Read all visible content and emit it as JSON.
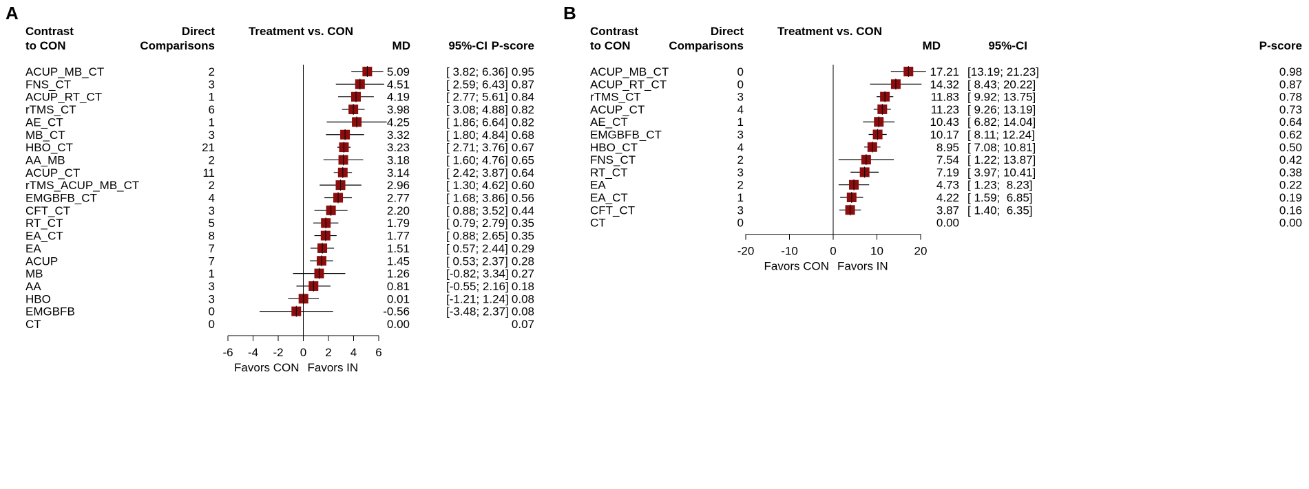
{
  "chart_data": [
    {
      "type": "forest",
      "panel_label": "A",
      "headers": {
        "contrast": [
          "Contrast",
          "to CON"
        ],
        "direct": [
          "Direct",
          "Comparisons"
        ],
        "plot_title": "Treatment vs. CON",
        "md": "MD",
        "ci": "95%-CI",
        "pscore": "P-score"
      },
      "rows": [
        {
          "label": "ACUP_MB_CT",
          "direct": "2",
          "md": 5.09,
          "lo": 3.82,
          "hi": 6.36,
          "md_text": "5.09",
          "ci_text": "[ 3.82; 6.36]",
          "pscore": "0.95"
        },
        {
          "label": "FNS_CT",
          "direct": "3",
          "md": 4.51,
          "lo": 2.59,
          "hi": 6.43,
          "md_text": "4.51",
          "ci_text": "[ 2.59; 6.43]",
          "pscore": "0.87"
        },
        {
          "label": "ACUP_RT_CT",
          "direct": "1",
          "md": 4.19,
          "lo": 2.77,
          "hi": 5.61,
          "md_text": "4.19",
          "ci_text": "[ 2.77; 5.61]",
          "pscore": "0.84"
        },
        {
          "label": "rTMS_CT",
          "direct": "6",
          "md": 3.98,
          "lo": 3.08,
          "hi": 4.88,
          "md_text": "3.98",
          "ci_text": "[ 3.08; 4.88]",
          "pscore": "0.82"
        },
        {
          "label": "AE_CT",
          "direct": "1",
          "md": 4.25,
          "lo": 1.86,
          "hi": 6.64,
          "md_text": "4.25",
          "ci_text": "[ 1.86; 6.64]",
          "pscore": "0.82"
        },
        {
          "label": "MB_CT",
          "direct": "3",
          "md": 3.32,
          "lo": 1.8,
          "hi": 4.84,
          "md_text": "3.32",
          "ci_text": "[ 1.80; 4.84]",
          "pscore": "0.68"
        },
        {
          "label": "HBO_CT",
          "direct": "21",
          "md": 3.23,
          "lo": 2.71,
          "hi": 3.76,
          "md_text": "3.23",
          "ci_text": "[ 2.71; 3.76]",
          "pscore": "0.67"
        },
        {
          "label": "AA_MB",
          "direct": "2",
          "md": 3.18,
          "lo": 1.6,
          "hi": 4.76,
          "md_text": "3.18",
          "ci_text": "[ 1.60; 4.76]",
          "pscore": "0.65"
        },
        {
          "label": "ACUP_CT",
          "direct": "11",
          "md": 3.14,
          "lo": 2.42,
          "hi": 3.87,
          "md_text": "3.14",
          "ci_text": "[ 2.42; 3.87]",
          "pscore": "0.64"
        },
        {
          "label": "rTMS_ACUP_MB_CT",
          "direct": "2",
          "md": 2.96,
          "lo": 1.3,
          "hi": 4.62,
          "md_text": "2.96",
          "ci_text": "[ 1.30; 4.62]",
          "pscore": "0.60"
        },
        {
          "label": "EMGBFB_CT",
          "direct": "4",
          "md": 2.77,
          "lo": 1.68,
          "hi": 3.86,
          "md_text": "2.77",
          "ci_text": "[ 1.68; 3.86]",
          "pscore": "0.56"
        },
        {
          "label": "CFT_CT",
          "direct": "3",
          "md": 2.2,
          "lo": 0.88,
          "hi": 3.52,
          "md_text": "2.20",
          "ci_text": "[ 0.88; 3.52]",
          "pscore": "0.44"
        },
        {
          "label": "RT_CT",
          "direct": "5",
          "md": 1.79,
          "lo": 0.79,
          "hi": 2.79,
          "md_text": "1.79",
          "ci_text": "[ 0.79; 2.79]",
          "pscore": "0.35"
        },
        {
          "label": "EA_CT",
          "direct": "8",
          "md": 1.77,
          "lo": 0.88,
          "hi": 2.65,
          "md_text": "1.77",
          "ci_text": "[ 0.88; 2.65]",
          "pscore": "0.35"
        },
        {
          "label": "EA",
          "direct": "7",
          "md": 1.51,
          "lo": 0.57,
          "hi": 2.44,
          "md_text": "1.51",
          "ci_text": "[ 0.57; 2.44]",
          "pscore": "0.29"
        },
        {
          "label": "ACUP",
          "direct": "7",
          "md": 1.45,
          "lo": 0.53,
          "hi": 2.37,
          "md_text": "1.45",
          "ci_text": "[ 0.53; 2.37]",
          "pscore": "0.28"
        },
        {
          "label": "MB",
          "direct": "1",
          "md": 1.26,
          "lo": -0.82,
          "hi": 3.34,
          "md_text": "1.26",
          "ci_text": "[-0.82; 3.34]",
          "pscore": "0.27"
        },
        {
          "label": "AA",
          "direct": "3",
          "md": 0.81,
          "lo": -0.55,
          "hi": 2.16,
          "md_text": "0.81",
          "ci_text": "[-0.55; 2.16]",
          "pscore": "0.18"
        },
        {
          "label": "HBO",
          "direct": "3",
          "md": 0.01,
          "lo": -1.21,
          "hi": 1.24,
          "md_text": "0.01",
          "ci_text": "[-1.21; 1.24]",
          "pscore": "0.08"
        },
        {
          "label": "EMGBFB",
          "direct": "0",
          "md": -0.56,
          "lo": -3.48,
          "hi": 2.37,
          "md_text": "-0.56",
          "ci_text": "[-3.48; 2.37]",
          "pscore": "0.08"
        },
        {
          "label": "CT",
          "direct": "0",
          "md": null,
          "lo": null,
          "hi": null,
          "md_text": "0.00",
          "ci_text": "",
          "pscore": "0.07"
        }
      ],
      "xlim": [
        -6,
        6
      ],
      "xticks": [
        "-6",
        "-4",
        "-2",
        "0",
        "2",
        "4",
        "6"
      ],
      "xtick_values": [
        -6,
        -4,
        -2,
        0,
        2,
        4,
        6
      ],
      "favors_left": "Favors CON",
      "favors_right": "Favors IN"
    },
    {
      "type": "forest",
      "panel_label": "B",
      "headers": {
        "contrast": [
          "Contrast",
          "to CON"
        ],
        "direct": [
          "Direct",
          "Comparisons"
        ],
        "plot_title": "Treatment vs. CON",
        "md": "MD",
        "ci": "95%-CI",
        "pscore": "P-score"
      },
      "rows": [
        {
          "label": "ACUP_MB_CT",
          "direct": "0",
          "md": 17.21,
          "lo": 13.19,
          "hi": 21.23,
          "md_text": "17.21",
          "ci_text": "[13.19; 21.23]",
          "pscore": "0.98"
        },
        {
          "label": "ACUP_RT_CT",
          "direct": "0",
          "md": 14.32,
          "lo": 8.43,
          "hi": 20.22,
          "md_text": "14.32",
          "ci_text": "[ 8.43; 20.22]",
          "pscore": "0.87"
        },
        {
          "label": "rTMS_CT",
          "direct": "3",
          "md": 11.83,
          "lo": 9.92,
          "hi": 13.75,
          "md_text": "11.83",
          "ci_text": "[ 9.92; 13.75]",
          "pscore": "0.78"
        },
        {
          "label": "ACUP_CT",
          "direct": "4",
          "md": 11.23,
          "lo": 9.26,
          "hi": 13.19,
          "md_text": "11.23",
          "ci_text": "[ 9.26; 13.19]",
          "pscore": "0.73"
        },
        {
          "label": "AE_CT",
          "direct": "1",
          "md": 10.43,
          "lo": 6.82,
          "hi": 14.04,
          "md_text": "10.43",
          "ci_text": "[ 6.82; 14.04]",
          "pscore": "0.64"
        },
        {
          "label": "EMGBFB_CT",
          "direct": "3",
          "md": 10.17,
          "lo": 8.11,
          "hi": 12.24,
          "md_text": "10.17",
          "ci_text": "[ 8.11; 12.24]",
          "pscore": "0.62"
        },
        {
          "label": "HBO_CT",
          "direct": "4",
          "md": 8.95,
          "lo": 7.08,
          "hi": 10.81,
          "md_text": "8.95",
          "ci_text": "[ 7.08; 10.81]",
          "pscore": "0.50"
        },
        {
          "label": "FNS_CT",
          "direct": "2",
          "md": 7.54,
          "lo": 1.22,
          "hi": 13.87,
          "md_text": "7.54",
          "ci_text": "[ 1.22; 13.87]",
          "pscore": "0.42"
        },
        {
          "label": "RT_CT",
          "direct": "3",
          "md": 7.19,
          "lo": 3.97,
          "hi": 10.41,
          "md_text": "7.19",
          "ci_text": "[ 3.97; 10.41]",
          "pscore": "0.38"
        },
        {
          "label": "EA",
          "direct": "2",
          "md": 4.73,
          "lo": 1.23,
          "hi": 8.23,
          "md_text": "4.73",
          "ci_text": "[ 1.23;  8.23]",
          "pscore": "0.22"
        },
        {
          "label": "EA_CT",
          "direct": "1",
          "md": 4.22,
          "lo": 1.59,
          "hi": 6.85,
          "md_text": "4.22",
          "ci_text": "[ 1.59;  6.85]",
          "pscore": "0.19"
        },
        {
          "label": "CFT_CT",
          "direct": "3",
          "md": 3.87,
          "lo": 1.4,
          "hi": 6.35,
          "md_text": "3.87",
          "ci_text": "[ 1.40;  6.35]",
          "pscore": "0.16"
        },
        {
          "label": "CT",
          "direct": "0",
          "md": null,
          "lo": null,
          "hi": null,
          "md_text": "0.00",
          "ci_text": "",
          "pscore": "0.00"
        }
      ],
      "xlim": [
        -20,
        20
      ],
      "xticks": [
        "-20",
        "-10",
        "0",
        "10",
        "20"
      ],
      "xtick_values": [
        -20,
        -10,
        0,
        10,
        20
      ],
      "favors_left": "Favors CON",
      "favors_right": "Favors IN"
    }
  ],
  "colors": {
    "marker": "#8b0d0d",
    "line": "#000000",
    "text": "#000000",
    "background": "#ffffff"
  }
}
